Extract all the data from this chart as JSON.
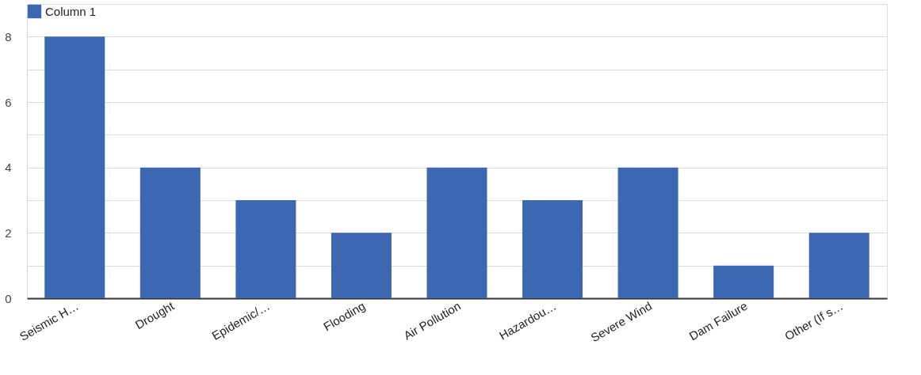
{
  "chart_data": {
    "type": "bar",
    "categories": [
      "Seismic H…",
      "Drought",
      "Epidemic/…",
      "Flooding",
      "Air Pollution",
      "Hazardou…",
      "Severe Wind",
      "Dam Failure",
      "Other (If s…"
    ],
    "series": [
      {
        "name": "Column 1",
        "color": "#3c67b1",
        "values": [
          8,
          4,
          3,
          2,
          4,
          3,
          4,
          1,
          2
        ]
      }
    ],
    "ylim": [
      0,
      9
    ],
    "yticks": [
      0,
      {
        "value": 1,
        "label": null
      },
      2,
      {
        "value": 3,
        "label": null
      },
      4,
      {
        "value": 5,
        "label": null
      },
      6,
      {
        "value": 7,
        "label": null
      },
      8,
      {
        "value": 9,
        "label": null
      }
    ],
    "grid": "y",
    "legend": "top left"
  }
}
